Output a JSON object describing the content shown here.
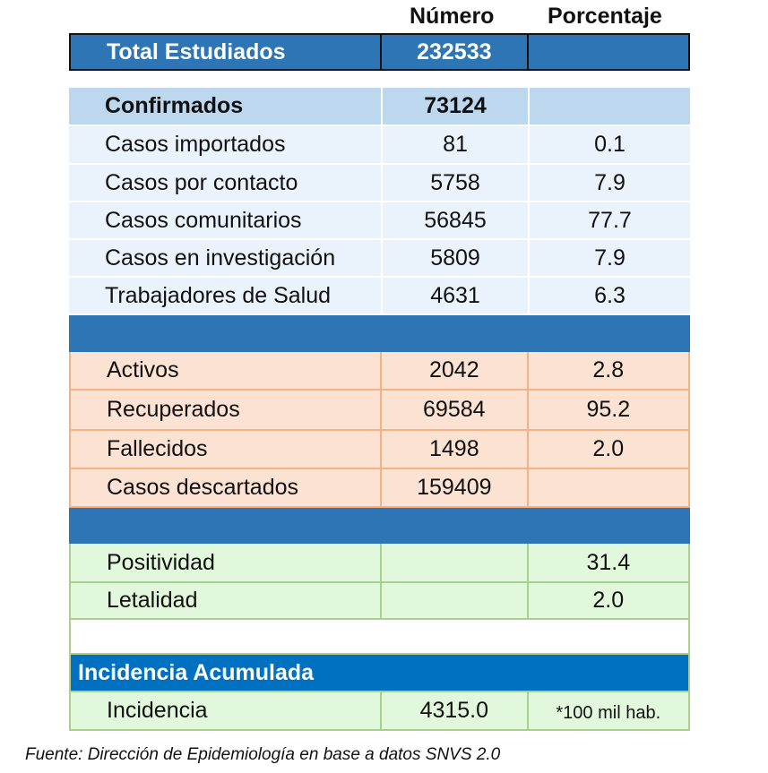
{
  "header": {
    "numero": "Número",
    "porcentaje": "Porcentaje"
  },
  "total": {
    "label": "Total Estudiados",
    "numero": "232533",
    "porcentaje": ""
  },
  "confirmados": {
    "label": "Confirmados",
    "numero": "73124",
    "porcentaje": ""
  },
  "confirmados_rows": [
    {
      "label": "Casos importados",
      "numero": "81",
      "porcentaje": "0.1"
    },
    {
      "label": "Casos por contacto",
      "numero": "5758",
      "porcentaje": "7.9"
    },
    {
      "label": "Casos comunitarios",
      "numero": "56845",
      "porcentaje": "77.7"
    },
    {
      "label": "Casos en investigación",
      "numero": "5809",
      "porcentaje": "7.9"
    },
    {
      "label": "Trabajadores de Salud",
      "numero": "4631",
      "porcentaje": "6.3"
    }
  ],
  "estado_rows": [
    {
      "label": "Activos",
      "numero": "2042",
      "porcentaje": "2.8"
    },
    {
      "label": "Recuperados",
      "numero": "69584",
      "porcentaje": "95.2"
    },
    {
      "label": "Fallecidos",
      "numero": "1498",
      "porcentaje": "2.0"
    },
    {
      "label": "Casos descartados",
      "numero": "159409",
      "porcentaje": ""
    }
  ],
  "indicadores_rows": [
    {
      "label": "Positividad",
      "numero": "",
      "porcentaje": "31.4"
    },
    {
      "label": "Letalidad",
      "numero": "",
      "porcentaje": "2.0"
    }
  ],
  "incidencia": {
    "section_title": "Incidencia Acumulada",
    "label": "Incidencia",
    "numero": "4315.0",
    "unidad": "*100 mil hab."
  },
  "footer": "Fuente: Dirección de Epidemiología en base a datos SNVS 2.0",
  "colors": {
    "band_blue": "#2e75b6",
    "confirmed_header": "#bdd7ee",
    "confirmed_rows": "#eaf3fb",
    "status_rows": "#fbe2d3",
    "indicator_rows": "#e2f8dc",
    "incidence_header": "#0070c0"
  }
}
